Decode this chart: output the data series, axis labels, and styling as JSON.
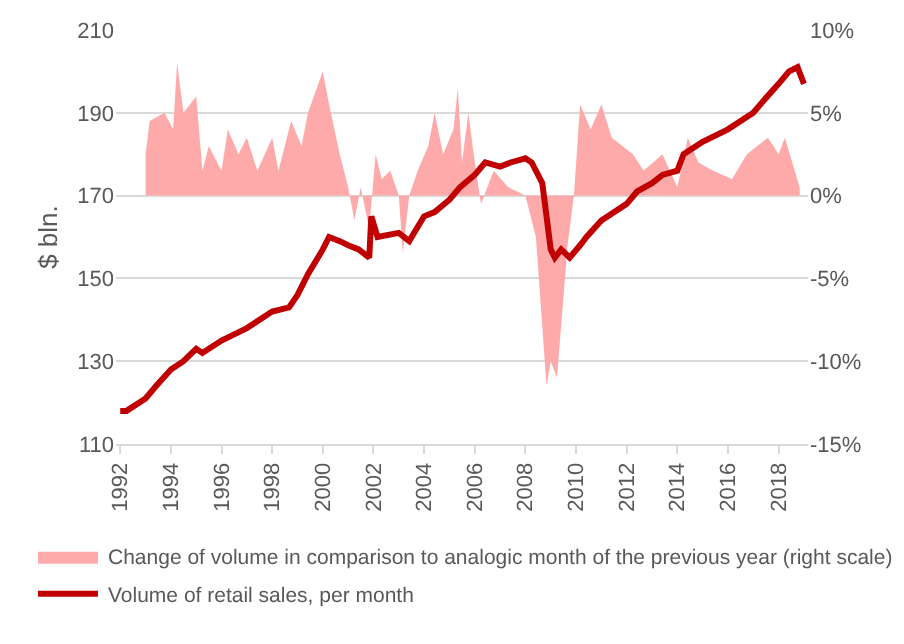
{
  "chart_data": {
    "type": "line",
    "ylabel": "$ bln.",
    "legend": "bottom",
    "grid": "y",
    "xlim": [
      "1991-11",
      "2019-03"
    ],
    "xticks": [
      {
        "value": "1992-01",
        "label": "1992"
      },
      {
        "value": "1994-01",
        "label": "1994"
      },
      {
        "value": "1996-01",
        "label": "1996"
      },
      {
        "value": "1998-01",
        "label": "1998"
      },
      {
        "value": "2000-01",
        "label": "2000"
      },
      {
        "value": "2002-01",
        "label": "2002"
      },
      {
        "value": "2004-01",
        "label": "2004"
      },
      {
        "value": "2006-01",
        "label": "2006"
      },
      {
        "value": "2008-01",
        "label": "2008"
      },
      {
        "value": "2010-01",
        "label": "2010"
      },
      {
        "value": "2012-01",
        "label": "2012"
      },
      {
        "value": "2014-01",
        "label": "2014"
      },
      {
        "value": "2016-01",
        "label": "2016"
      },
      {
        "value": "2018-01",
        "label": "2018"
      }
    ],
    "ylim": [
      110,
      210
    ],
    "yticks": [
      110,
      130,
      150,
      170,
      190,
      210
    ],
    "y2lim": [
      -15,
      10
    ],
    "y2ticks": [
      {
        "value": -15,
        "label": "-15%"
      },
      {
        "value": -10,
        "label": "-10%"
      },
      {
        "value": -5,
        "label": "-5%"
      },
      {
        "value": 0,
        "label": "0%"
      },
      {
        "value": 5,
        "label": "5%"
      },
      {
        "value": 10,
        "label": "10%"
      }
    ],
    "series": [
      {
        "name": "Change of volume in comparison to analogic month of the previous year (right scale)",
        "type": "area",
        "axis": "y2",
        "color": "#ffaaaa",
        "x": [
          "1993-01",
          "1993-03",
          "1993-10",
          "1994-02",
          "1994-04",
          "1994-07",
          "1995-01",
          "1995-04",
          "1995-07",
          "1996-01",
          "1996-04",
          "1996-09",
          "1997-01",
          "1997-06",
          "1998-01",
          "1998-04",
          "1998-10",
          "1999-03",
          "1999-06",
          "2000-01",
          "2000-04",
          "2000-09",
          "2001-01",
          "2001-04",
          "2001-07",
          "2001-11",
          "2002-02",
          "2002-05",
          "2002-09",
          "2003-01",
          "2003-03",
          "2003-06",
          "2003-10",
          "2004-03",
          "2004-06",
          "2004-10",
          "2005-03",
          "2005-05",
          "2005-07",
          "2005-10",
          "2006-01",
          "2006-04",
          "2006-10",
          "2007-05",
          "2008-01",
          "2008-06",
          "2008-11",
          "2009-01",
          "2009-04",
          "2009-09",
          "2009-12",
          "2010-03",
          "2010-08",
          "2011-01",
          "2011-06",
          "2012-04",
          "2012-09",
          "2013-06",
          "2014-01",
          "2014-06",
          "2014-11",
          "2015-06",
          "2016-03",
          "2016-10",
          "2017-08",
          "2018-01",
          "2018-04",
          "2018-11"
        ],
        "values": [
          2.5,
          4.5,
          5,
          4,
          8,
          5,
          6,
          1.5,
          3,
          1.5,
          4,
          2.5,
          3.5,
          1.5,
          3.5,
          1.5,
          4.5,
          3,
          5,
          7.5,
          5.5,
          2.5,
          0.5,
          -1.5,
          0.5,
          -2,
          2.5,
          1,
          1.5,
          0,
          -3.5,
          0,
          1.5,
          3,
          5,
          2.5,
          4,
          6.5,
          2,
          5,
          2,
          -0.5,
          1.5,
          0.5,
          0,
          -2.5,
          -11.5,
          -10,
          -11,
          -3,
          0,
          5.5,
          4,
          5.5,
          3.5,
          2.5,
          1.5,
          2.5,
          0.5,
          3.5,
          2,
          1.5,
          1,
          2.5,
          3.5,
          2.5,
          3.5,
          0.5
        ]
      },
      {
        "name": "Volume of retail sales, per month",
        "type": "line",
        "axis": "y",
        "color": "#c00000",
        "x": [
          "1992-01",
          "1992-04",
          "1993-01",
          "1993-06",
          "1994-01",
          "1994-07",
          "1995-01",
          "1995-04",
          "1996-01",
          "1997-01",
          "1998-01",
          "1998-09",
          "1999-01",
          "1999-06",
          "2000-01",
          "2000-04",
          "2000-09",
          "2001-01",
          "2001-06",
          "2001-11",
          "2001-12",
          "2002-03",
          "2003-01",
          "2003-06",
          "2004-01",
          "2004-06",
          "2005-01",
          "2005-06",
          "2006-01",
          "2006-06",
          "2007-01",
          "2007-06",
          "2008-01",
          "2008-04",
          "2008-09",
          "2009-01",
          "2009-03",
          "2009-06",
          "2009-10",
          "2010-03",
          "2010-06",
          "2011-01",
          "2012-01",
          "2012-06",
          "2013-01",
          "2013-06",
          "2014-01",
          "2014-04",
          "2015-01",
          "2016-01",
          "2017-01",
          "2017-06",
          "2018-01",
          "2018-06",
          "2018-10",
          "2019-01"
        ],
        "values": [
          118,
          118,
          121,
          124,
          128,
          130,
          133,
          132,
          135,
          138,
          142,
          143,
          146,
          151,
          157,
          160,
          159,
          158,
          157,
          155,
          165,
          160,
          161,
          159,
          165,
          166,
          169,
          172,
          175,
          178,
          177,
          178,
          179,
          178,
          173,
          157,
          155,
          157,
          155,
          158,
          160,
          164,
          168,
          171,
          173,
          175,
          176,
          180,
          183,
          186,
          190,
          193,
          197,
          200,
          201,
          197
        ]
      }
    ]
  }
}
